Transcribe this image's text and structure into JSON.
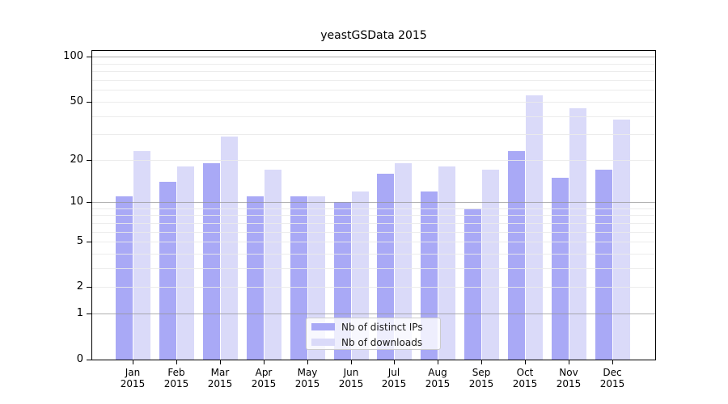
{
  "title": "yeastGSData 2015",
  "chart_data": {
    "type": "bar",
    "title": "yeastGSData 2015",
    "xlabel": "",
    "ylabel": "",
    "categories": [
      "Jan 2015",
      "Feb 2015",
      "Mar 2015",
      "Apr 2015",
      "May 2015",
      "Jun 2015",
      "Jul 2015",
      "Aug 2015",
      "Sep 2015",
      "Oct 2015",
      "Nov 2015",
      "Dec 2015"
    ],
    "series": [
      {
        "name": "Nb of distinct IPs",
        "color": "#a9a9f6",
        "values": [
          11,
          14,
          19,
          11,
          11,
          10,
          16,
          12,
          9,
          23,
          15,
          17
        ]
      },
      {
        "name": "Nb of downloads",
        "color": "#dadaf9",
        "values": [
          23,
          18,
          29,
          17,
          11,
          12,
          19,
          18,
          17,
          55,
          45,
          38
        ]
      }
    ],
    "y_scale": "log1p",
    "y_axis_ticks": [
      0,
      1,
      2,
      5,
      10,
      20,
      50,
      100
    ],
    "y_grid_minor": [
      2,
      3,
      4,
      5,
      6,
      7,
      8,
      9,
      20,
      30,
      40,
      50,
      60,
      70,
      80,
      90
    ],
    "y_grid_major": [
      1,
      10,
      100
    ],
    "ylim": [
      0,
      110
    ],
    "grid": "horizontal",
    "legend_position": "bottom-center"
  },
  "colors": {
    "bar_dark": "#a9a9f6",
    "bar_light": "#dadaf9",
    "grid_minor": "#eaeaea",
    "grid_major": "#aaaaaa",
    "axis": "#000000",
    "background": "#ffffff"
  }
}
